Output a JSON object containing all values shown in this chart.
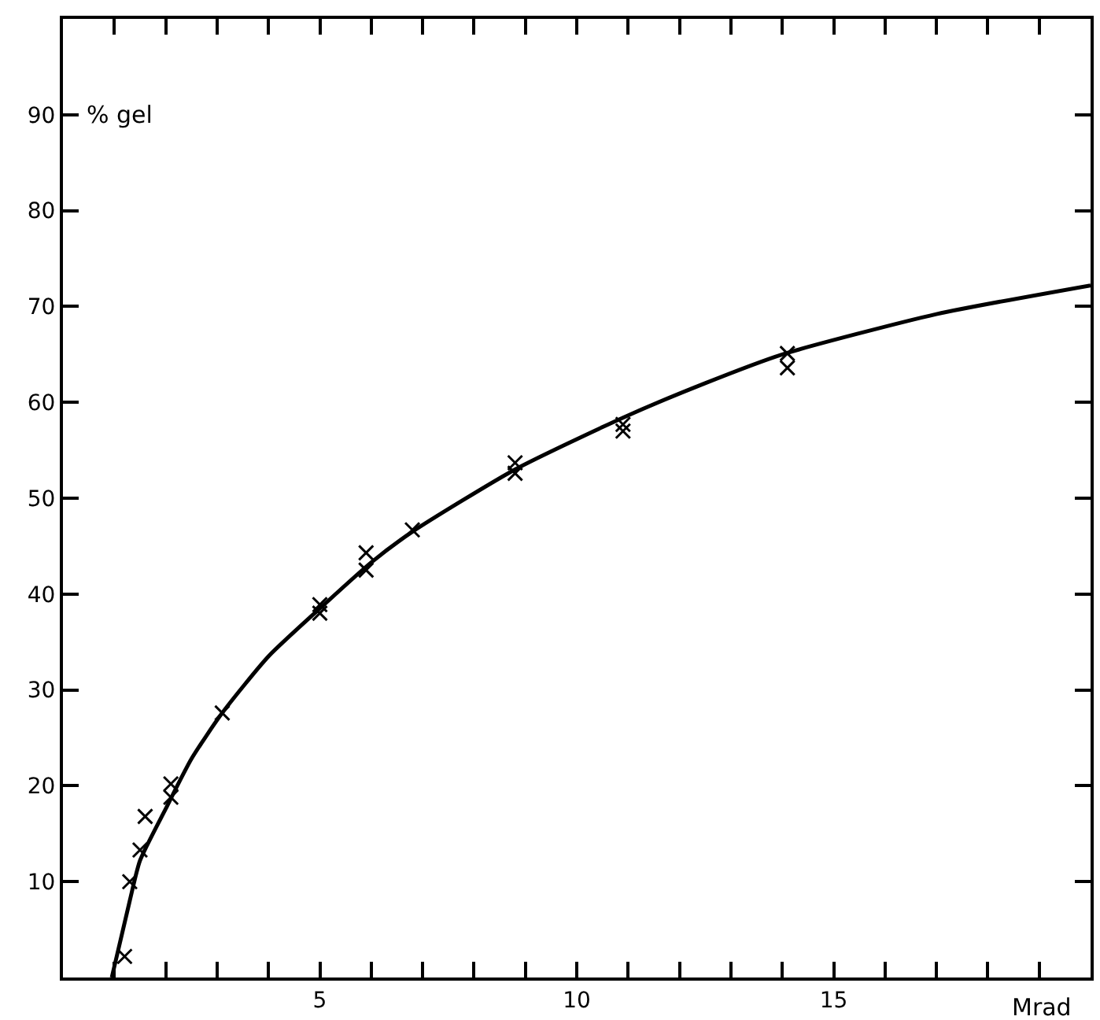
{
  "chart_data": {
    "type": "scatter",
    "xlabel": "Mrad",
    "ylabel": "% gel",
    "xlim": [
      0,
      20
    ],
    "ylim": [
      0,
      100
    ],
    "xticks": [
      {
        "value": 1,
        "label": null
      },
      {
        "value": 2,
        "label": null
      },
      {
        "value": 3,
        "label": null
      },
      {
        "value": 4,
        "label": null
      },
      5,
      {
        "value": 6,
        "label": null
      },
      {
        "value": 7,
        "label": null
      },
      {
        "value": 8,
        "label": null
      },
      {
        "value": 9,
        "label": null
      },
      10,
      {
        "value": 11,
        "label": null
      },
      {
        "value": 12,
        "label": null
      },
      {
        "value": 13,
        "label": null
      },
      {
        "value": 14,
        "label": null
      },
      15,
      {
        "value": 16,
        "label": null
      },
      {
        "value": 17,
        "label": null
      },
      {
        "value": 18,
        "label": null
      },
      {
        "value": 19,
        "label": null
      }
    ],
    "yticks": [
      10,
      20,
      30,
      40,
      50,
      60,
      70,
      80,
      90
    ],
    "marker": "cross",
    "series": [
      {
        "color": "#000000",
        "x": [
          1.2,
          1.3,
          1.5,
          1.6,
          2.1,
          2.1,
          3.1,
          5.0,
          5.0,
          5.9,
          5.9,
          6.8,
          8.8,
          8.8,
          10.9,
          10.9,
          14.1,
          14.1
        ],
        "values": [
          2.2,
          10,
          13.3,
          16.8,
          20.2,
          18.8,
          27.6,
          38.9,
          38.0,
          44.3,
          42.5,
          46.7,
          53.7,
          52.6,
          57.0,
          57.7,
          65.1,
          63.6
        ]
      },
      {
        "type": "line",
        "color": "#000000",
        "marker": "none",
        "line_style": "solid",
        "x": [
          0.95,
          1.3,
          1.5,
          2.0,
          2.5,
          3.1,
          4.0,
          5.0,
          6.0,
          6.8,
          8.8,
          10.9,
          12.5,
          14.0,
          17.0,
          20.0
        ],
        "values": [
          0,
          8,
          12.2,
          17.6,
          22.8,
          27.6,
          33.5,
          38.5,
          43.3,
          46.5,
          53.0,
          58.4,
          62.0,
          65.0,
          69.2,
          72.2
        ]
      }
    ]
  }
}
